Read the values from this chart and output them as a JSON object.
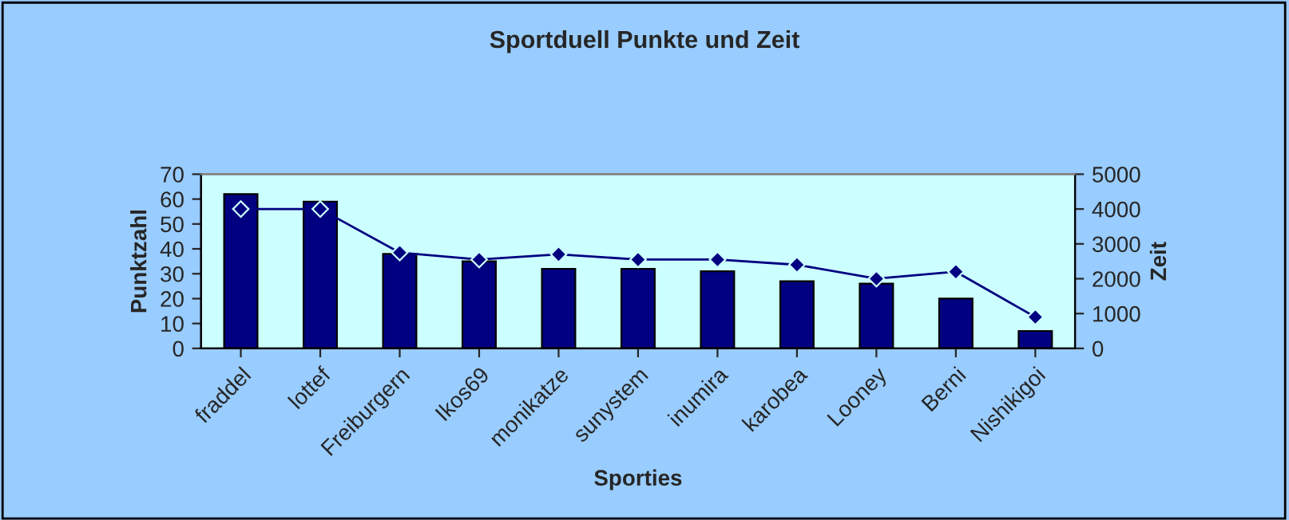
{
  "chart_data": {
    "type": "bar",
    "title": "Sportduell Punkte und Zeit",
    "xlabel": "Sporties",
    "ylabel": "Punktzahl",
    "y2label": "Zeit",
    "categories": [
      "fraddel",
      "lottef",
      "Freiburgern",
      "Ikos69",
      "monikatze",
      "sunystem",
      "inumira",
      "karobea",
      "Looney",
      "Berni",
      "Nishikigoi"
    ],
    "series": [
      {
        "color": "#000080",
        "values": [
          62,
          59,
          38,
          35,
          32,
          32,
          31,
          27,
          26,
          20,
          7
        ]
      },
      {
        "type": "line",
        "axis": "y2",
        "color": "#000080",
        "marker": "diamond",
        "line_style": "solid",
        "values": [
          4000,
          4000,
          2750,
          2550,
          2700,
          2550,
          2550,
          2400,
          2000,
          2200,
          900
        ]
      }
    ],
    "ylim": [
      0,
      70
    ],
    "yticks": [
      0,
      10,
      20,
      30,
      40,
      50,
      60,
      70
    ],
    "y2lim": [
      0,
      5000
    ],
    "y2ticks": [
      0,
      1000,
      2000,
      3000,
      4000,
      5000
    ],
    "grid": false,
    "legend": false
  }
}
